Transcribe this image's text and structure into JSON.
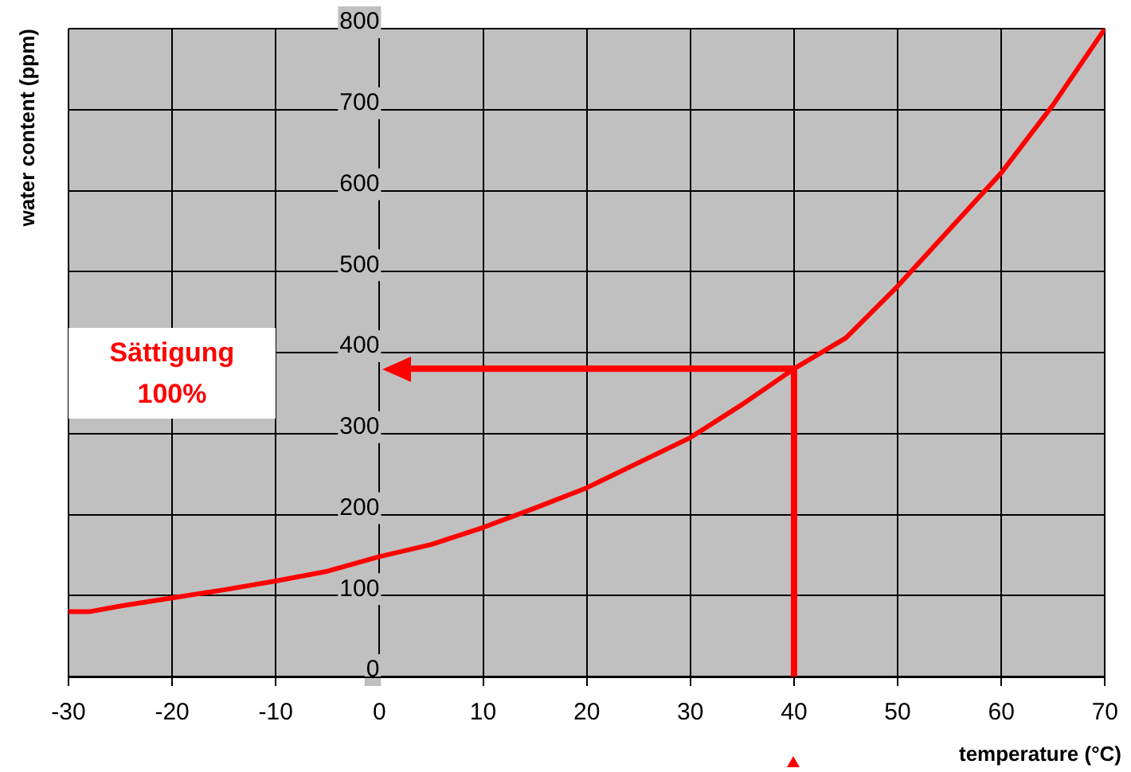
{
  "chart_data": {
    "type": "line",
    "xlabel": "temperature (°C)",
    "ylabel": "water content (ppm)",
    "x": [
      -30,
      -28,
      -25,
      -20,
      -15,
      -10,
      -5,
      0,
      5,
      10,
      15,
      20,
      25,
      30,
      35,
      40,
      45,
      50,
      55,
      60,
      65,
      70
    ],
    "series": [
      {
        "color": "#ff0000",
        "values": [
          80,
          80,
          87,
          97,
          107,
          118,
          130,
          148,
          163,
          184,
          208,
          233,
          264,
          295,
          336,
          380,
          418,
          482,
          552,
          622,
          706,
          800
        ]
      }
    ],
    "xlim": [
      -30,
      70
    ],
    "xticks": [
      -30,
      -20,
      -10,
      0,
      10,
      20,
      30,
      40,
      50,
      60,
      70
    ],
    "ylim": [
      0,
      800
    ],
    "yticks": [
      0,
      100,
      200,
      300,
      400,
      500,
      600,
      700,
      800
    ],
    "grid": true,
    "legend": false,
    "marker": "none",
    "line_style": "solid",
    "ref_lines": [
      {
        "axis": "y",
        "value": 380,
        "color": "#ff0000"
      },
      {
        "axis": "x",
        "value": 40,
        "color": "#ff0000"
      }
    ],
    "annotations": [
      "Sättigung 100%"
    ]
  }
}
